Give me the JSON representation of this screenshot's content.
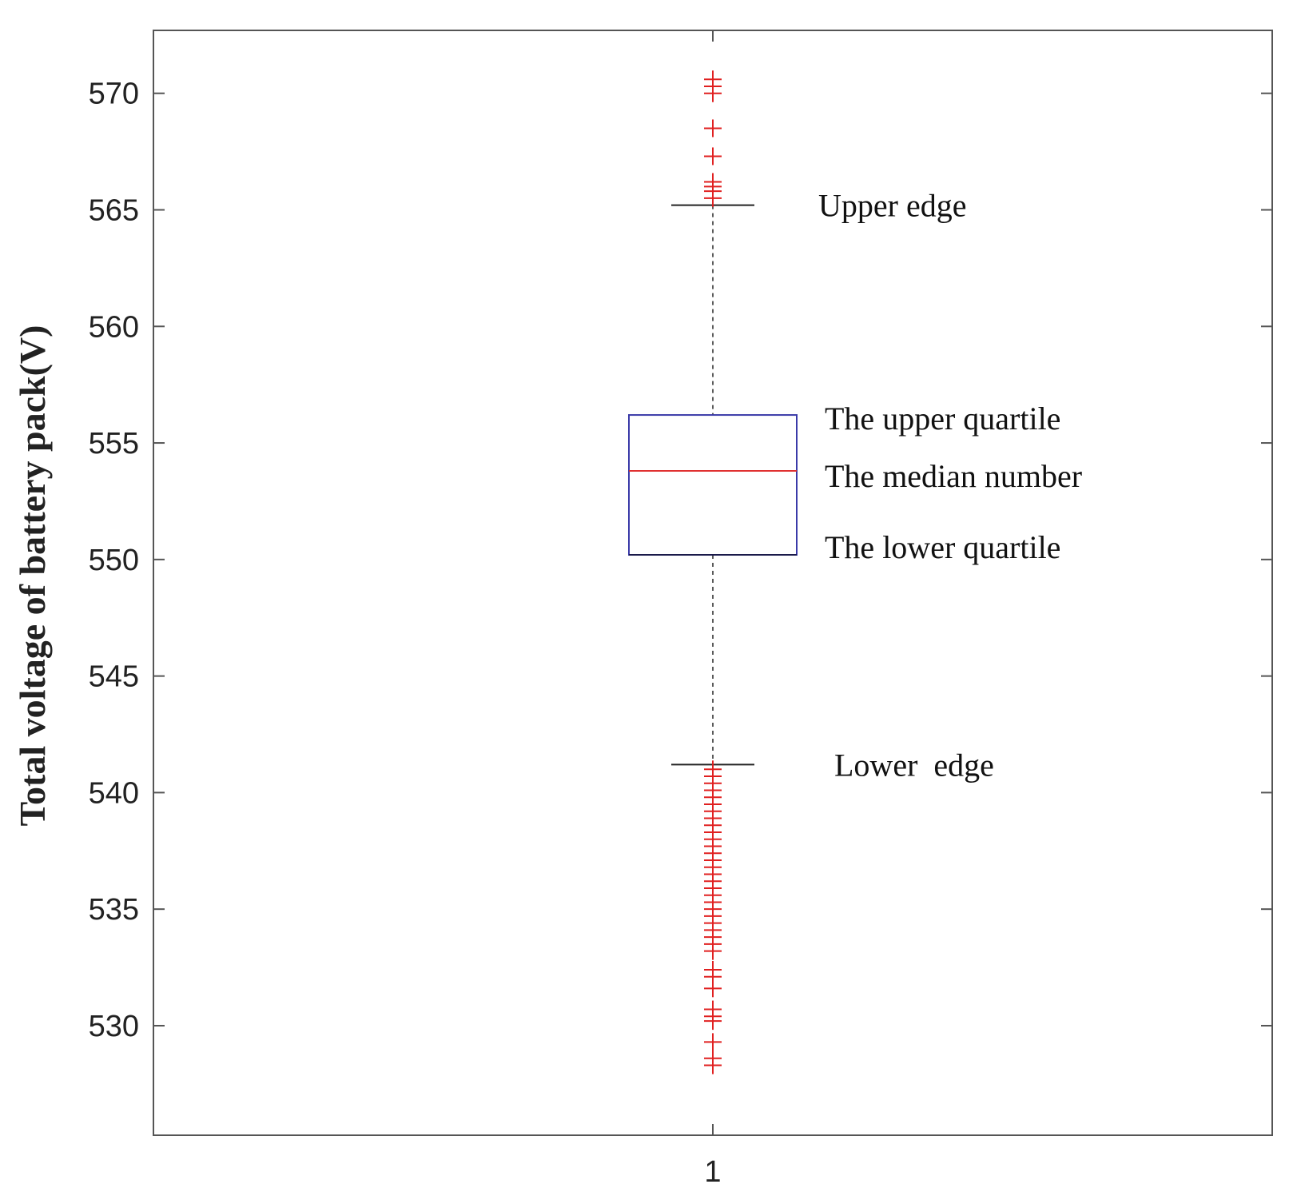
{
  "chart_data": {
    "type": "boxplot",
    "ylabel": "Total voltage of battery pack(V)",
    "xlabel": "",
    "ylim": [
      525.3,
      572.7
    ],
    "yticks": [
      530,
      535,
      540,
      545,
      550,
      555,
      560,
      565,
      570
    ],
    "xtick_labels": [
      "1"
    ],
    "grid": false,
    "box": {
      "category": "1",
      "upper_whisker": 565.2,
      "q3": 556.2,
      "median": 553.8,
      "q1": 550.2,
      "lower_whisker": 541.2
    },
    "outliers": [
      570.6,
      570.3,
      570.0,
      568.5,
      567.3,
      566.2,
      566.0,
      565.8,
      565.5,
      541.0,
      540.7,
      540.4,
      540.1,
      539.8,
      539.5,
      539.2,
      538.9,
      538.6,
      538.3,
      538.0,
      537.7,
      537.4,
      537.1,
      536.8,
      536.5,
      536.2,
      535.9,
      535.6,
      535.3,
      535.0,
      534.7,
      534.4,
      534.1,
      533.8,
      533.5,
      533.2,
      532.4,
      532.1,
      531.6,
      530.7,
      530.4,
      530.2,
      529.3,
      528.6,
      528.3
    ],
    "colors": {
      "box": "#3a3aa8",
      "median": "#e03030",
      "whisker": "#222222",
      "outlier": "#e02020",
      "axes": "#555555"
    },
    "annotations": [
      {
        "text": "Upper edge",
        "y": 565.2
      },
      {
        "text": "The upper quartile",
        "y": 556.2
      },
      {
        "text": "The median number",
        "y": 553.8
      },
      {
        "text": "The lower quartile",
        "y": 550.2
      },
      {
        "text": "Lower  edge",
        "y": 541.2
      }
    ]
  }
}
